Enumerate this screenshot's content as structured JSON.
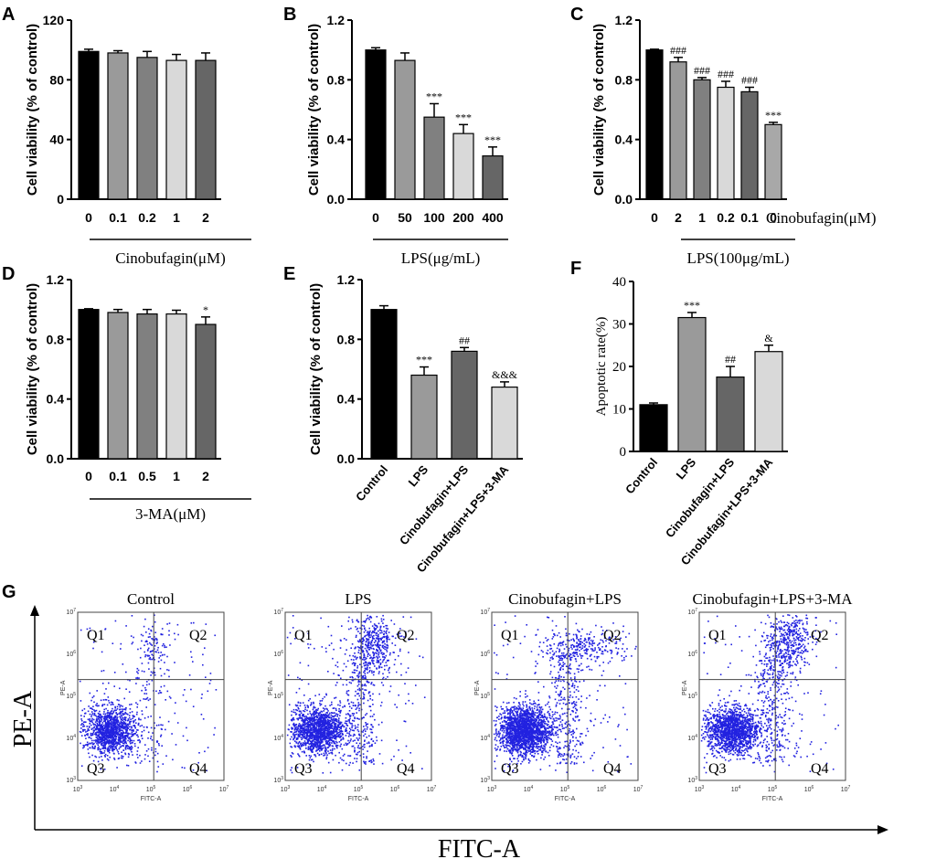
{
  "panels": {
    "A": "A",
    "B": "B",
    "C": "C",
    "D": "D",
    "E": "E",
    "F": "F",
    "G": "G"
  },
  "colors": {
    "black": "#000000",
    "dark_gray": "#666666",
    "mid_gray": "#9a9a9a",
    "light_gray": "#d9d9d9",
    "pale_gray": "#c8c8c8",
    "points": "#2222e0"
  },
  "chart_data": [
    {
      "id": "A",
      "type": "bar",
      "ylabel": "Cell viability  (% of control)",
      "ylim": [
        0,
        120
      ],
      "yticks": [
        "0",
        "40",
        "80",
        "120"
      ],
      "categories": [
        "0",
        "0.1",
        "0.2",
        "1",
        "2"
      ],
      "values": [
        99,
        98,
        95,
        93,
        93
      ],
      "errors": [
        1.5,
        1.5,
        4,
        4,
        5
      ],
      "colors": [
        "#000000",
        "#9a9a9a",
        "#808080",
        "#d9d9d9",
        "#666666"
      ],
      "sig": [
        "",
        "",
        "",
        "",
        ""
      ],
      "group_label": "Cinobufagin(μM)"
    },
    {
      "id": "B",
      "type": "bar",
      "ylabel": "Cell viability  (% of control)",
      "ylim": [
        0,
        1.2
      ],
      "yticks": [
        "0.0",
        "0.4",
        "0.8",
        "1.2"
      ],
      "categories": [
        "0",
        "50",
        "100",
        "200",
        "400"
      ],
      "values": [
        1.0,
        0.93,
        0.55,
        0.44,
        0.29
      ],
      "errors": [
        0.015,
        0.05,
        0.09,
        0.06,
        0.06
      ],
      "colors": [
        "#000000",
        "#9a9a9a",
        "#808080",
        "#d9d9d9",
        "#666666"
      ],
      "sig": [
        "",
        "",
        "***",
        "***",
        "***"
      ],
      "group_label": "LPS(μg/mL)"
    },
    {
      "id": "C",
      "type": "bar",
      "ylabel": "Cell viability  (% of control)",
      "ylim": [
        0,
        1.2
      ],
      "yticks": [
        "0.0",
        "0.4",
        "0.8",
        "1.2"
      ],
      "categories": [
        "0",
        "2",
        "1",
        "0.2",
        "0.1",
        "0"
      ],
      "values": [
        1.0,
        0.92,
        0.8,
        0.75,
        0.72,
        0.5
      ],
      "errors": [
        0.005,
        0.03,
        0.015,
        0.04,
        0.03,
        0.015
      ],
      "colors": [
        "#000000",
        "#9a9a9a",
        "#808080",
        "#d9d9d9",
        "#666666",
        "#a8a8a8"
      ],
      "sig": [
        "",
        "###",
        "###",
        "###",
        "###",
        "***"
      ],
      "group_label": "LPS(100μg/mL)",
      "row_label": "Cinobufagin(μM)"
    },
    {
      "id": "D",
      "type": "bar",
      "ylabel": "Cell viability  (% of control)",
      "ylim": [
        0,
        1.2
      ],
      "yticks": [
        "0.0",
        "0.4",
        "0.8",
        "1.2"
      ],
      "categories": [
        "0",
        "0.1",
        "0.5",
        "1",
        "2"
      ],
      "values": [
        1.0,
        0.98,
        0.97,
        0.97,
        0.9
      ],
      "errors": [
        0.005,
        0.02,
        0.03,
        0.025,
        0.05
      ],
      "colors": [
        "#000000",
        "#9a9a9a",
        "#808080",
        "#d9d9d9",
        "#666666"
      ],
      "sig": [
        "",
        "",
        "",
        "",
        "*"
      ],
      "group_label": "3-MA(μM)"
    },
    {
      "id": "E",
      "type": "bar",
      "ylabel": "Cell viability  (% of control)",
      "ylim": [
        0,
        1.2
      ],
      "yticks": [
        "0.0",
        "0.4",
        "0.8",
        "1.2"
      ],
      "categories": [
        "Control",
        "LPS",
        "Cinobufagin+LPS",
        "Cinobufagin+LPS+3-MA"
      ],
      "values": [
        1.0,
        0.56,
        0.72,
        0.48
      ],
      "errors": [
        0.025,
        0.055,
        0.025,
        0.035
      ],
      "colors": [
        "#000000",
        "#9a9a9a",
        "#666666",
        "#d9d9d9"
      ],
      "sig": [
        "",
        "***",
        "##",
        "&&&"
      ]
    },
    {
      "id": "F",
      "type": "bar",
      "ylabel": "Apoptotic rate(%)",
      "ylim": [
        0,
        40
      ],
      "yticks": [
        "0",
        "10",
        "20",
        "30",
        "40"
      ],
      "categories": [
        "Control",
        "LPS",
        "Cinobufagin+LPS",
        "Cinobufagin+LPS+3-MA"
      ],
      "values": [
        11,
        31.5,
        17.5,
        23.5
      ],
      "errors": [
        0.4,
        1.2,
        2.5,
        1.5
      ],
      "colors": [
        "#000000",
        "#9a9a9a",
        "#666666",
        "#d9d9d9"
      ],
      "sig": [
        "",
        "***",
        "##",
        "&"
      ]
    },
    {
      "id": "G",
      "type": "scatter",
      "xlabel": "FITC-A",
      "ylabel": "PE-A",
      "plot_xlabel": "FITC-A",
      "plot_ylabel": "PE-A",
      "ticks": [
        "10",
        "10",
        "10",
        "10",
        "10"
      ],
      "tick_exponents": [
        "3",
        "4",
        "5",
        "6",
        "7"
      ],
      "quadrants": [
        "Q1",
        "Q2",
        "Q3",
        "Q4"
      ],
      "plots": [
        {
          "title": "Control",
          "q2_cluster": "sparse",
          "q4_density": "low"
        },
        {
          "title": "LPS",
          "q2_cluster": "dense",
          "q4_density": "medium"
        },
        {
          "title": "Cinobufagin+LPS",
          "q2_cluster": "band",
          "q4_density": "medium"
        },
        {
          "title": "Cinobufagin+LPS+3-MA",
          "q2_cluster": "dense",
          "q4_density": "medium"
        }
      ]
    }
  ]
}
